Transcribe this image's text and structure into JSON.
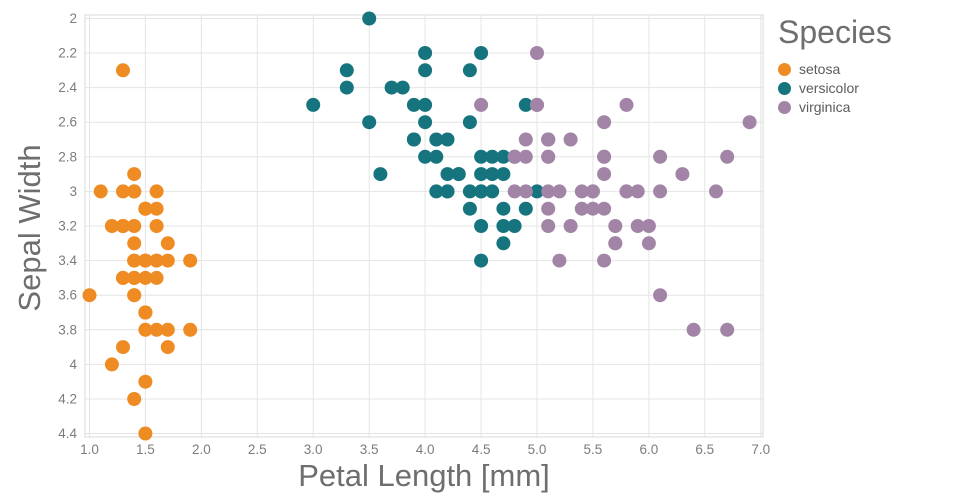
{
  "chart_data": {
    "type": "scatter",
    "title": "",
    "xlabel": "Petal Length [mm]",
    "ylabel": "Sepal Width",
    "legend_title": "Species",
    "legend_position": "top-right",
    "grid": true,
    "y_inverted": true,
    "xlim": [
      0.96,
      7.02
    ],
    "ylim_top_to_bottom": [
      1.98,
      4.42
    ],
    "x_ticks": {
      "values": [
        1,
        1.5,
        2,
        2.5,
        3,
        3.5,
        4,
        4.5,
        5,
        5.5,
        6,
        6.5,
        7
      ],
      "labels": [
        "1.0",
        "1.5",
        "2.0",
        "2.5",
        "3.0",
        "3.5",
        "4.0",
        "4.5",
        "5.0",
        "5.5",
        "6.0",
        "6.5",
        "7.0"
      ]
    },
    "y_ticks": {
      "values": [
        2,
        2.2,
        2.4,
        2.6,
        2.8,
        3,
        3.2,
        3.4,
        3.6,
        3.8,
        4,
        4.2,
        4.4
      ],
      "labels": [
        "2",
        "2.2",
        "2.4",
        "2.6",
        "2.8",
        "3",
        "3.2",
        "3.4",
        "3.6",
        "3.8",
        "4",
        "4.2",
        "4.4"
      ]
    },
    "series": [
      {
        "name": "setosa",
        "color": "#EE8B23",
        "points": [
          [
            1.4,
            3.5
          ],
          [
            1.4,
            3.0
          ],
          [
            1.3,
            3.2
          ],
          [
            1.5,
            3.1
          ],
          [
            1.4,
            3.6
          ],
          [
            1.7,
            3.9
          ],
          [
            1.4,
            3.4
          ],
          [
            1.5,
            3.4
          ],
          [
            1.4,
            2.9
          ],
          [
            1.5,
            3.1
          ],
          [
            1.5,
            3.7
          ],
          [
            1.6,
            3.4
          ],
          [
            1.4,
            3.0
          ],
          [
            1.1,
            3.0
          ],
          [
            1.2,
            4.0
          ],
          [
            1.5,
            4.4
          ],
          [
            1.3,
            3.9
          ],
          [
            1.4,
            3.5
          ],
          [
            1.7,
            3.8
          ],
          [
            1.5,
            3.8
          ],
          [
            1.7,
            3.4
          ],
          [
            1.5,
            3.7
          ],
          [
            1.0,
            3.6
          ],
          [
            1.7,
            3.3
          ],
          [
            1.9,
            3.4
          ],
          [
            1.6,
            3.0
          ],
          [
            1.6,
            3.4
          ],
          [
            1.5,
            3.5
          ],
          [
            1.4,
            3.4
          ],
          [
            1.6,
            3.2
          ],
          [
            1.6,
            3.1
          ],
          [
            1.5,
            3.4
          ],
          [
            1.5,
            4.1
          ],
          [
            1.4,
            4.2
          ],
          [
            1.5,
            3.1
          ],
          [
            1.2,
            3.2
          ],
          [
            1.3,
            3.5
          ],
          [
            1.4,
            3.6
          ],
          [
            1.3,
            3.0
          ],
          [
            1.5,
            3.4
          ],
          [
            1.3,
            3.5
          ],
          [
            1.3,
            2.3
          ],
          [
            1.3,
            3.2
          ],
          [
            1.6,
            3.5
          ],
          [
            1.9,
            3.8
          ],
          [
            1.4,
            3.0
          ],
          [
            1.6,
            3.8
          ],
          [
            1.4,
            3.2
          ],
          [
            1.5,
            3.7
          ],
          [
            1.4,
            3.3
          ]
        ]
      },
      {
        "name": "versicolor",
        "color": "#16747E",
        "points": [
          [
            4.7,
            3.2
          ],
          [
            4.5,
            3.2
          ],
          [
            4.9,
            3.1
          ],
          [
            4.0,
            2.3
          ],
          [
            4.6,
            2.8
          ],
          [
            4.5,
            2.8
          ],
          [
            4.7,
            3.3
          ],
          [
            3.3,
            2.4
          ],
          [
            4.6,
            2.9
          ],
          [
            3.9,
            2.7
          ],
          [
            3.5,
            2.0
          ],
          [
            4.2,
            3.0
          ],
          [
            4.0,
            2.2
          ],
          [
            4.7,
            2.9
          ],
          [
            3.6,
            2.9
          ],
          [
            4.4,
            3.1
          ],
          [
            4.5,
            3.0
          ],
          [
            4.1,
            2.7
          ],
          [
            4.5,
            2.2
          ],
          [
            3.9,
            2.5
          ],
          [
            4.8,
            3.2
          ],
          [
            4.0,
            2.8
          ],
          [
            4.9,
            2.5
          ],
          [
            4.7,
            2.8
          ],
          [
            4.3,
            2.9
          ],
          [
            4.4,
            3.0
          ],
          [
            4.8,
            2.8
          ],
          [
            5.0,
            3.0
          ],
          [
            4.5,
            2.9
          ],
          [
            3.5,
            2.6
          ],
          [
            3.8,
            2.4
          ],
          [
            3.7,
            2.4
          ],
          [
            3.9,
            2.7
          ],
          [
            5.1,
            2.7
          ],
          [
            4.5,
            3.0
          ],
          [
            4.5,
            3.4
          ],
          [
            4.7,
            3.1
          ],
          [
            4.4,
            2.3
          ],
          [
            4.1,
            3.0
          ],
          [
            4.0,
            2.5
          ],
          [
            4.4,
            2.6
          ],
          [
            4.6,
            3.0
          ],
          [
            4.0,
            2.6
          ],
          [
            3.3,
            2.3
          ],
          [
            4.2,
            2.7
          ],
          [
            4.2,
            3.0
          ],
          [
            4.2,
            2.9
          ],
          [
            4.3,
            2.9
          ],
          [
            3.0,
            2.5
          ],
          [
            4.1,
            2.8
          ]
        ]
      },
      {
        "name": "virginica",
        "color": "#A284A6",
        "points": [
          [
            6.0,
            3.3
          ],
          [
            5.1,
            2.7
          ],
          [
            5.9,
            3.0
          ],
          [
            5.6,
            2.9
          ],
          [
            5.8,
            3.0
          ],
          [
            6.6,
            3.0
          ],
          [
            4.5,
            2.5
          ],
          [
            6.3,
            2.9
          ],
          [
            5.8,
            2.5
          ],
          [
            6.1,
            3.6
          ],
          [
            5.1,
            3.2
          ],
          [
            5.3,
            2.7
          ],
          [
            5.5,
            3.0
          ],
          [
            5.0,
            2.5
          ],
          [
            5.1,
            2.8
          ],
          [
            5.3,
            3.2
          ],
          [
            5.5,
            3.0
          ],
          [
            6.7,
            3.8
          ],
          [
            6.9,
            2.6
          ],
          [
            5.0,
            2.2
          ],
          [
            5.7,
            3.2
          ],
          [
            4.9,
            2.8
          ],
          [
            6.7,
            2.8
          ],
          [
            4.9,
            2.7
          ],
          [
            5.7,
            3.3
          ],
          [
            6.0,
            3.2
          ],
          [
            4.8,
            2.8
          ],
          [
            4.9,
            3.0
          ],
          [
            5.6,
            2.8
          ],
          [
            5.8,
            3.0
          ],
          [
            6.1,
            2.8
          ],
          [
            6.4,
            3.8
          ],
          [
            5.6,
            2.8
          ],
          [
            5.1,
            2.8
          ],
          [
            5.6,
            2.6
          ],
          [
            6.1,
            3.0
          ],
          [
            5.6,
            3.4
          ],
          [
            5.5,
            3.1
          ],
          [
            4.8,
            3.0
          ],
          [
            5.4,
            3.1
          ],
          [
            5.6,
            3.1
          ],
          [
            5.1,
            3.1
          ],
          [
            5.1,
            2.7
          ],
          [
            5.9,
            3.2
          ],
          [
            5.7,
            3.3
          ],
          [
            5.2,
            3.0
          ],
          [
            5.0,
            2.5
          ],
          [
            5.2,
            3.4
          ],
          [
            5.4,
            3.0
          ],
          [
            5.1,
            3.0
          ]
        ]
      }
    ]
  }
}
